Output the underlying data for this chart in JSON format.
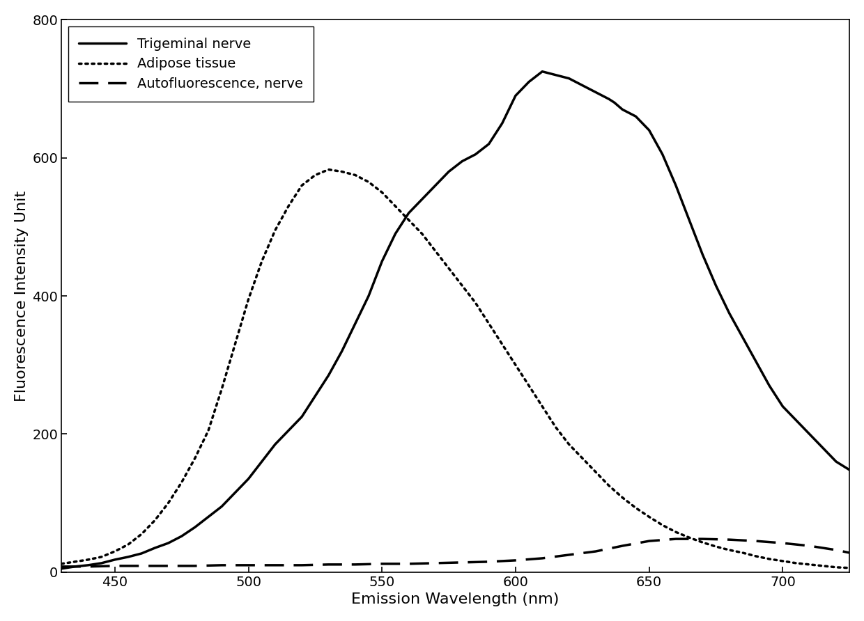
{
  "title": "",
  "xlabel": "Emission Wavelength (nm)",
  "ylabel": "Fluorescence Intensity Unit",
  "xlim": [
    430,
    725
  ],
  "ylim": [
    0,
    800
  ],
  "xticks": [
    450,
    500,
    550,
    600,
    650,
    700
  ],
  "yticks": [
    0,
    200,
    400,
    600,
    800
  ],
  "background_color": "#ffffff",
  "legend_labels": [
    "Trigeminal nerve",
    "Adipose tissue",
    "Autofluorescence, nerve"
  ],
  "line_colors": [
    "#000000",
    "#000000",
    "#000000"
  ],
  "trigeminal_x": [
    430,
    435,
    440,
    445,
    450,
    455,
    460,
    465,
    470,
    475,
    480,
    485,
    490,
    495,
    500,
    505,
    510,
    515,
    520,
    525,
    530,
    535,
    540,
    545,
    550,
    555,
    560,
    565,
    570,
    575,
    580,
    585,
    590,
    595,
    600,
    605,
    610,
    615,
    620,
    625,
    630,
    635,
    637,
    640,
    645,
    650,
    655,
    660,
    665,
    670,
    675,
    680,
    685,
    690,
    695,
    700,
    705,
    710,
    715,
    720,
    725
  ],
  "trigeminal_y": [
    5,
    8,
    10,
    13,
    18,
    22,
    27,
    35,
    42,
    52,
    65,
    80,
    95,
    115,
    135,
    160,
    185,
    205,
    225,
    255,
    285,
    320,
    360,
    400,
    450,
    490,
    520,
    540,
    560,
    580,
    595,
    605,
    620,
    650,
    690,
    710,
    725,
    720,
    715,
    705,
    695,
    685,
    680,
    670,
    660,
    640,
    605,
    560,
    510,
    460,
    415,
    375,
    340,
    305,
    270,
    240,
    220,
    200,
    180,
    160,
    148
  ],
  "adipose_x": [
    430,
    435,
    440,
    445,
    450,
    455,
    460,
    465,
    470,
    475,
    480,
    485,
    490,
    495,
    500,
    505,
    510,
    515,
    520,
    525,
    530,
    535,
    540,
    545,
    550,
    555,
    560,
    565,
    570,
    575,
    580,
    585,
    590,
    595,
    600,
    605,
    610,
    615,
    620,
    625,
    630,
    635,
    640,
    645,
    650,
    655,
    660,
    665,
    670,
    675,
    680,
    685,
    690,
    695,
    700,
    705,
    710,
    715,
    720,
    725
  ],
  "adipose_y": [
    12,
    15,
    18,
    22,
    30,
    40,
    55,
    75,
    100,
    130,
    165,
    205,
    265,
    330,
    395,
    450,
    495,
    530,
    560,
    575,
    583,
    580,
    575,
    565,
    550,
    530,
    510,
    490,
    465,
    440,
    415,
    390,
    360,
    330,
    300,
    270,
    240,
    210,
    185,
    165,
    145,
    125,
    108,
    93,
    80,
    68,
    58,
    50,
    43,
    37,
    32,
    28,
    23,
    19,
    16,
    13,
    11,
    9,
    7,
    6
  ],
  "autofluor_x": [
    430,
    440,
    450,
    460,
    470,
    480,
    490,
    500,
    510,
    520,
    530,
    540,
    550,
    560,
    570,
    580,
    590,
    600,
    610,
    620,
    630,
    640,
    650,
    660,
    670,
    680,
    690,
    700,
    710,
    720,
    725
  ],
  "autofluor_y": [
    8,
    8,
    9,
    9,
    9,
    9,
    10,
    10,
    10,
    10,
    11,
    11,
    12,
    12,
    13,
    14,
    15,
    17,
    20,
    25,
    30,
    38,
    45,
    48,
    48,
    47,
    45,
    42,
    38,
    32,
    28
  ]
}
